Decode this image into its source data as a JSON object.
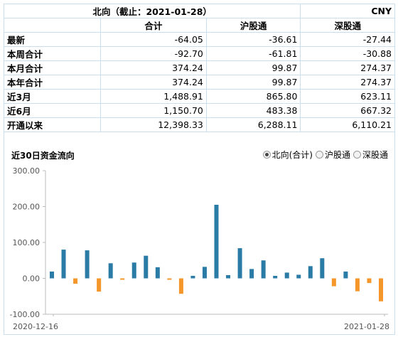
{
  "table": {
    "title": "北向（截止：2021-01-28）",
    "currency": "CNY",
    "columns": [
      "合计",
      "沪股通",
      "深股通"
    ],
    "rows": [
      {
        "label": "最新",
        "values": [
          "-64.05",
          "-36.61",
          "-27.44"
        ]
      },
      {
        "label": "本周合计",
        "values": [
          "-92.70",
          "-61.81",
          "-30.88"
        ]
      },
      {
        "label": "本月合计",
        "values": [
          "374.24",
          "99.87",
          "274.37"
        ]
      },
      {
        "label": "本年合计",
        "values": [
          "374.24",
          "99.87",
          "274.37"
        ]
      },
      {
        "label": "近3月",
        "values": [
          "1,488.91",
          "865.80",
          "623.11"
        ]
      },
      {
        "label": "近6月",
        "values": [
          "1,150.70",
          "483.38",
          "667.32"
        ]
      },
      {
        "label": "开通以来",
        "values": [
          "12,398.33",
          "6,288.11",
          "6,110.21"
        ]
      }
    ]
  },
  "chart_panel": {
    "title": "近30日资金流向",
    "options": [
      {
        "label": "北向(合计)",
        "selected": true
      },
      {
        "label": "沪股通",
        "selected": false
      },
      {
        "label": "深股通",
        "selected": false
      }
    ]
  },
  "colors": {
    "positive": "#2a7ba5",
    "negative": "#f5962a"
  },
  "chart_data": {
    "type": "bar",
    "title": "",
    "xlabel": "",
    "ylabel": "",
    "ylim": [
      -100,
      300
    ],
    "yticks": [
      "-100.00",
      "0.00",
      "100.00",
      "200.00",
      "300.00"
    ],
    "x_start_label": "2020-12-16",
    "x_end_label": "2021-01-28",
    "values": [
      19,
      80,
      -15,
      78,
      -37,
      42,
      -4,
      44,
      63,
      31,
      -4,
      -43,
      7,
      32,
      205,
      9,
      84,
      26,
      50,
      7,
      16,
      10,
      34,
      56,
      -22,
      19,
      -36,
      -13,
      -64
    ]
  }
}
